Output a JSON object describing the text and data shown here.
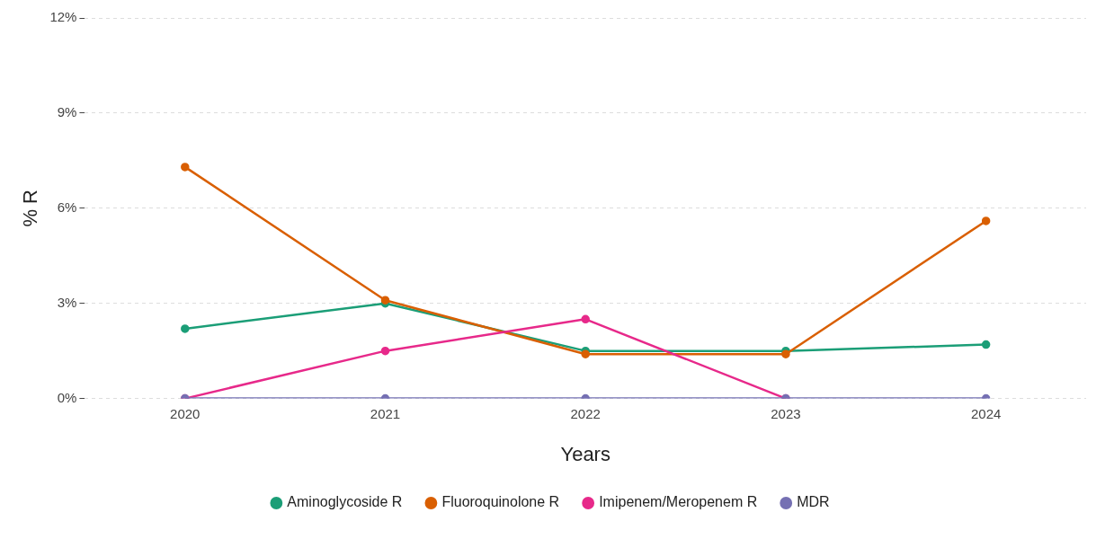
{
  "chart_data": {
    "type": "line",
    "xlabel": "Years",
    "ylabel": "% R",
    "categories": [
      "2020",
      "2021",
      "2022",
      "2023",
      "2024"
    ],
    "series": [
      {
        "name": "Aminoglycoside R",
        "color": "#1b9e77",
        "values": [
          2.2,
          3.0,
          1.5,
          1.5,
          1.7
        ]
      },
      {
        "name": "Fluoroquinolone R",
        "color": "#d95f02",
        "values": [
          7.3,
          3.1,
          1.4,
          1.4,
          5.6
        ]
      },
      {
        "name": "Imipenem/Meropenem R",
        "color": "#e7298a",
        "values": [
          0,
          1.5,
          2.5,
          0,
          null
        ]
      },
      {
        "name": "MDR",
        "color": "#7570b3",
        "values": [
          0,
          0,
          0,
          0,
          0
        ]
      }
    ],
    "ylim": [
      0,
      12
    ],
    "yticks": [
      {
        "value": 0,
        "label": "0%"
      },
      {
        "value": 3,
        "label": "3%"
      },
      {
        "value": 6,
        "label": "6%"
      },
      {
        "value": 9,
        "label": "9%"
      },
      {
        "value": 12,
        "label": "12%"
      }
    ],
    "grid": "y",
    "legend": "bottom",
    "marker": "circle",
    "line_style": "solid"
  }
}
